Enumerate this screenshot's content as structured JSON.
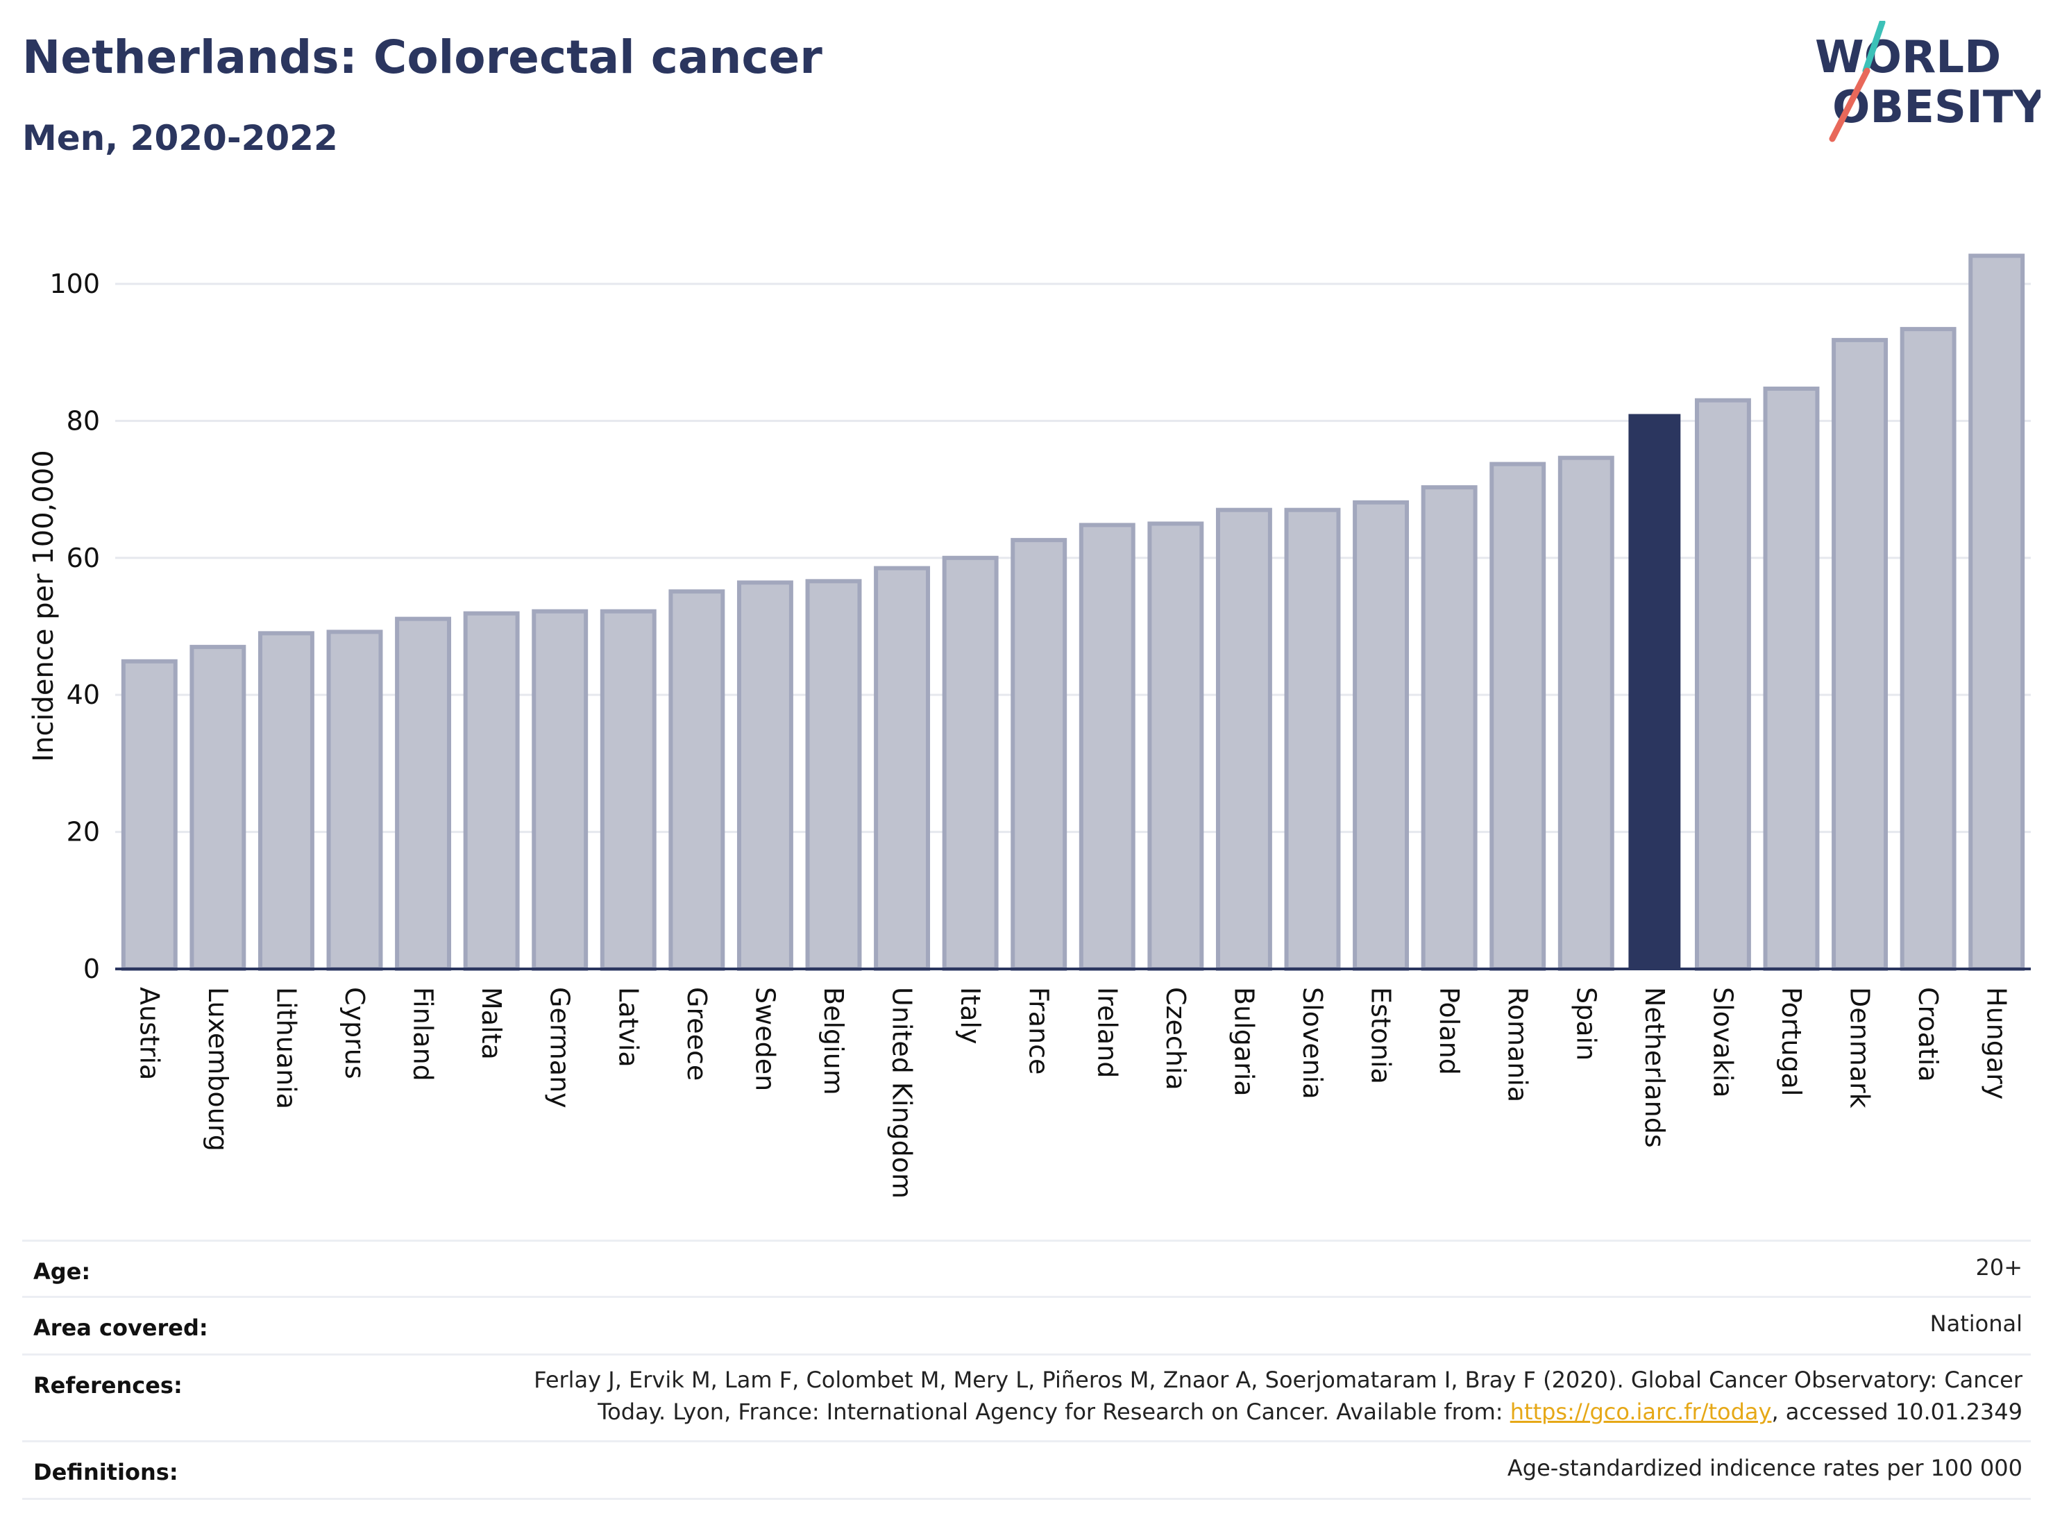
{
  "header": {
    "title": "Netherlands: Colorectal cancer",
    "subtitle": "Men, 2020-2022"
  },
  "logo": {
    "line1": "WORLD",
    "line2": "OBESITY",
    "colors": {
      "text": "#2b365f",
      "slash_teal": "#3cc1b8",
      "slash_red": "#e8685a"
    }
  },
  "chart_data": {
    "type": "bar",
    "ylabel": "Incidence per 100,000",
    "xlabel": "",
    "ylim": [
      0,
      108
    ],
    "yticks": [
      0,
      20,
      40,
      60,
      80,
      100
    ],
    "grid": true,
    "highlight": "Netherlands",
    "colors": {
      "default_fill": "#bfc2cf",
      "default_stroke": "#a2a7bd",
      "highlight_fill": "#2b365f",
      "axis": "#2b365f",
      "grid": "#e6e8ee"
    },
    "categories": [
      "Austria",
      "Luxembourg",
      "Lithuania",
      "Cyprus",
      "Finland",
      "Malta",
      "Germany",
      "Latvia",
      "Greece",
      "Sweden",
      "Belgium",
      "United Kingdom",
      "Italy",
      "France",
      "Ireland",
      "Czechia",
      "Bulgaria",
      "Slovenia",
      "Estonia",
      "Poland",
      "Romania",
      "Spain",
      "Netherlands",
      "Slovakia",
      "Portugal",
      "Denmark",
      "Croatia",
      "Hungary"
    ],
    "values": [
      44.9,
      47.0,
      49.0,
      49.2,
      51.1,
      51.9,
      52.2,
      52.2,
      55.1,
      56.4,
      56.6,
      58.5,
      60.0,
      62.6,
      64.8,
      65.0,
      67.0,
      67.0,
      68.1,
      70.3,
      73.7,
      74.6,
      81.0,
      83.0,
      84.7,
      91.8,
      93.4,
      104.1
    ]
  },
  "info": {
    "age": {
      "label": "Age:",
      "value": "20+"
    },
    "area": {
      "label": "Area covered:",
      "value": "National"
    },
    "references": {
      "label": "References:",
      "line1": "Ferlay J, Ervik M, Lam F, Colombet M, Mery L, Piñeros M, Znaor A, Soerjomataram I, Bray F (2020). Global Cancer Observatory: Cancer",
      "line2_pre": "Today. Lyon, France: International Agency for Research on Cancer. Available from: ",
      "link": "https://gco.iarc.fr/today",
      "line2_post": ", accessed 10.01.2349"
    },
    "definitions": {
      "label": "Definitions:",
      "value": "Age-standardized indicence rates per 100 000"
    }
  }
}
